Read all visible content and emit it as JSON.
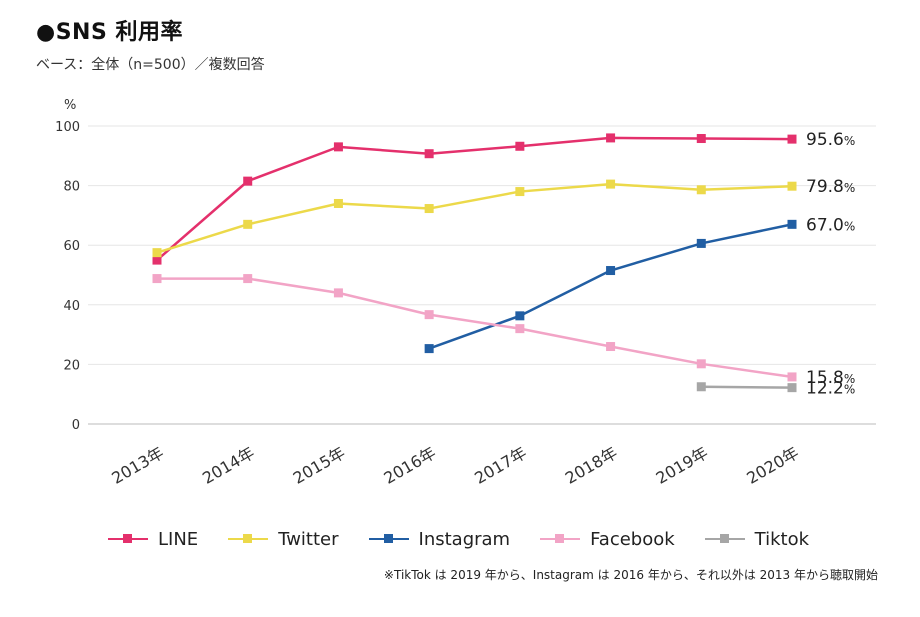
{
  "title": "●SNS 利用率",
  "subtitle": "ベース：全体（n=500）／複数回答",
  "footnote": "※TikTok は 2019 年から、Instagram は 2016 年から、それ以外は 2013 年から聴取開始",
  "chart_data": {
    "type": "line",
    "title": "●SNS 利用率",
    "subtitle": "ベース：全体（n=500）／複数回答",
    "ylabel": "%",
    "xlabel": "",
    "categories": [
      "2013年",
      "2014年",
      "2015年",
      "2016年",
      "2017年",
      "2018年",
      "2019年",
      "2020年"
    ],
    "ylim": [
      0,
      100
    ],
    "yticks": [
      0,
      20,
      40,
      60,
      80,
      100
    ],
    "grid": true,
    "legend_position": "bottom",
    "series": [
      {
        "name": "LINE",
        "color": "#e4306c",
        "values": [
          55,
          81.5,
          93,
          90.7,
          93.2,
          96,
          95.8,
          95.6
        ],
        "end_label": "95.6",
        "end_unit": "%"
      },
      {
        "name": "Twitter",
        "color": "#ecd94a",
        "values": [
          57.5,
          67,
          74,
          72.3,
          78,
          80.5,
          78.6,
          79.8
        ],
        "end_label": "79.8",
        "end_unit": "%"
      },
      {
        "name": "Instagram",
        "color": "#215ea3",
        "values": [
          null,
          null,
          null,
          25.3,
          36.3,
          51.5,
          60.6,
          67.0
        ],
        "end_label": "67.0",
        "end_unit": "%"
      },
      {
        "name": "Facebook",
        "color": "#f2a4c6",
        "values": [
          48.8,
          48.8,
          44,
          36.7,
          32,
          26,
          20.2,
          15.8
        ],
        "end_label": "15.8",
        "end_unit": "%"
      },
      {
        "name": "Tiktok",
        "color": "#a6a6a6",
        "values": [
          null,
          null,
          null,
          null,
          null,
          null,
          12.5,
          12.2
        ],
        "end_label": "12.2",
        "end_unit": "%"
      }
    ]
  }
}
